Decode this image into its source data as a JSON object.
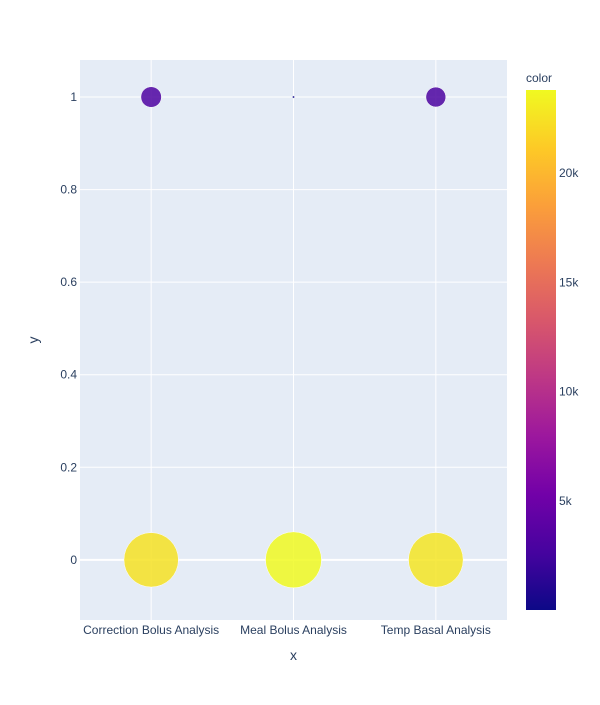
{
  "chart_data": {
    "type": "scatter",
    "categories": [
      "Correction Bolus Analysis",
      "Meal Bolus Analysis",
      "Temp Basal Analysis"
    ],
    "xlabel": "x",
    "ylabel": "y",
    "ylim": [
      -0.13,
      1.08
    ],
    "yticks": [
      0,
      0.2,
      0.4,
      0.6,
      0.8,
      1
    ],
    "ytick_labels": [
      "0",
      "0.2",
      "0.4",
      "0.6",
      "0.8",
      "1"
    ],
    "grid": true,
    "points": [
      {
        "x": "Correction Bolus Analysis",
        "y": 1,
        "color_value": 3200
      },
      {
        "x": "Meal Bolus Analysis",
        "y": 1,
        "color_value": 20
      },
      {
        "x": "Temp Basal Analysis",
        "y": 1,
        "color_value": 3000
      },
      {
        "x": "Correction Bolus Analysis",
        "y": 0,
        "color_value": 22500
      },
      {
        "x": "Meal Bolus Analysis",
        "y": 0,
        "color_value": 23800
      },
      {
        "x": "Temp Basal Analysis",
        "y": 0,
        "color_value": 22700
      }
    ],
    "colorbar": {
      "title": "color",
      "min": 0,
      "max": 23800,
      "ticks": [
        5000,
        10000,
        15000,
        20000
      ],
      "tick_labels": [
        "5k",
        "10k",
        "15k",
        "20k"
      ],
      "colorscale": [
        "#0d0887",
        "#46039f",
        "#7201a8",
        "#9c179e",
        "#bd3786",
        "#d8576b",
        "#ed7953",
        "#fb9f3a",
        "#fdca26",
        "#f0f921"
      ]
    },
    "colors": {
      "plot_bg": "#e5ecf6",
      "grid": "#ffffff",
      "text": "#2a3f5f"
    }
  }
}
